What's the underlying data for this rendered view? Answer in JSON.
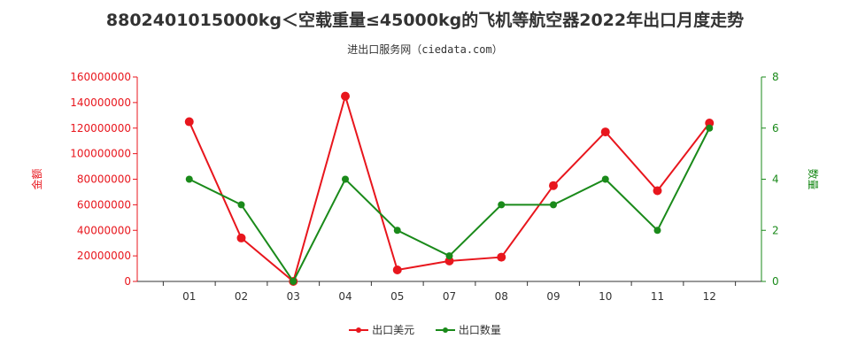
{
  "chart_data": {
    "type": "line",
    "title": "8802401015000kg＜空载重量≤45000kg的飞机等航空器2022年出口月度走势",
    "subtitle": "进出口服务网（ciedata.com）",
    "categories": [
      "01",
      "02",
      "03",
      "04",
      "05",
      "07",
      "08",
      "09",
      "10",
      "11",
      "12"
    ],
    "y_left": {
      "label": "金额",
      "ylim": [
        0,
        160000000
      ],
      "ticks": [
        "0",
        "20000000",
        "40000000",
        "60000000",
        "80000000",
        "100000000",
        "120000000",
        "140000000",
        "160000000"
      ]
    },
    "y_right": {
      "label": "数量",
      "ylim": [
        0,
        8
      ],
      "ticks": [
        "0",
        "2",
        "4",
        "6",
        "8"
      ]
    },
    "series": [
      {
        "name": "出口美元",
        "axis": "left",
        "color": "#e8161d",
        "values": [
          125000000,
          34000000,
          0,
          145000000,
          9000000,
          16000000,
          19000000,
          75000000,
          117000000,
          71000000,
          124000000
        ]
      },
      {
        "name": "出口数量",
        "axis": "right",
        "color": "#1a8a1a",
        "values": [
          4,
          3,
          0,
          4,
          2,
          1,
          3,
          3,
          4,
          2,
          6
        ]
      }
    ],
    "legend_position": "bottom-center",
    "grid": false,
    "left_axis_color": "#e8161d",
    "right_axis_color": "#1a8a1a"
  }
}
